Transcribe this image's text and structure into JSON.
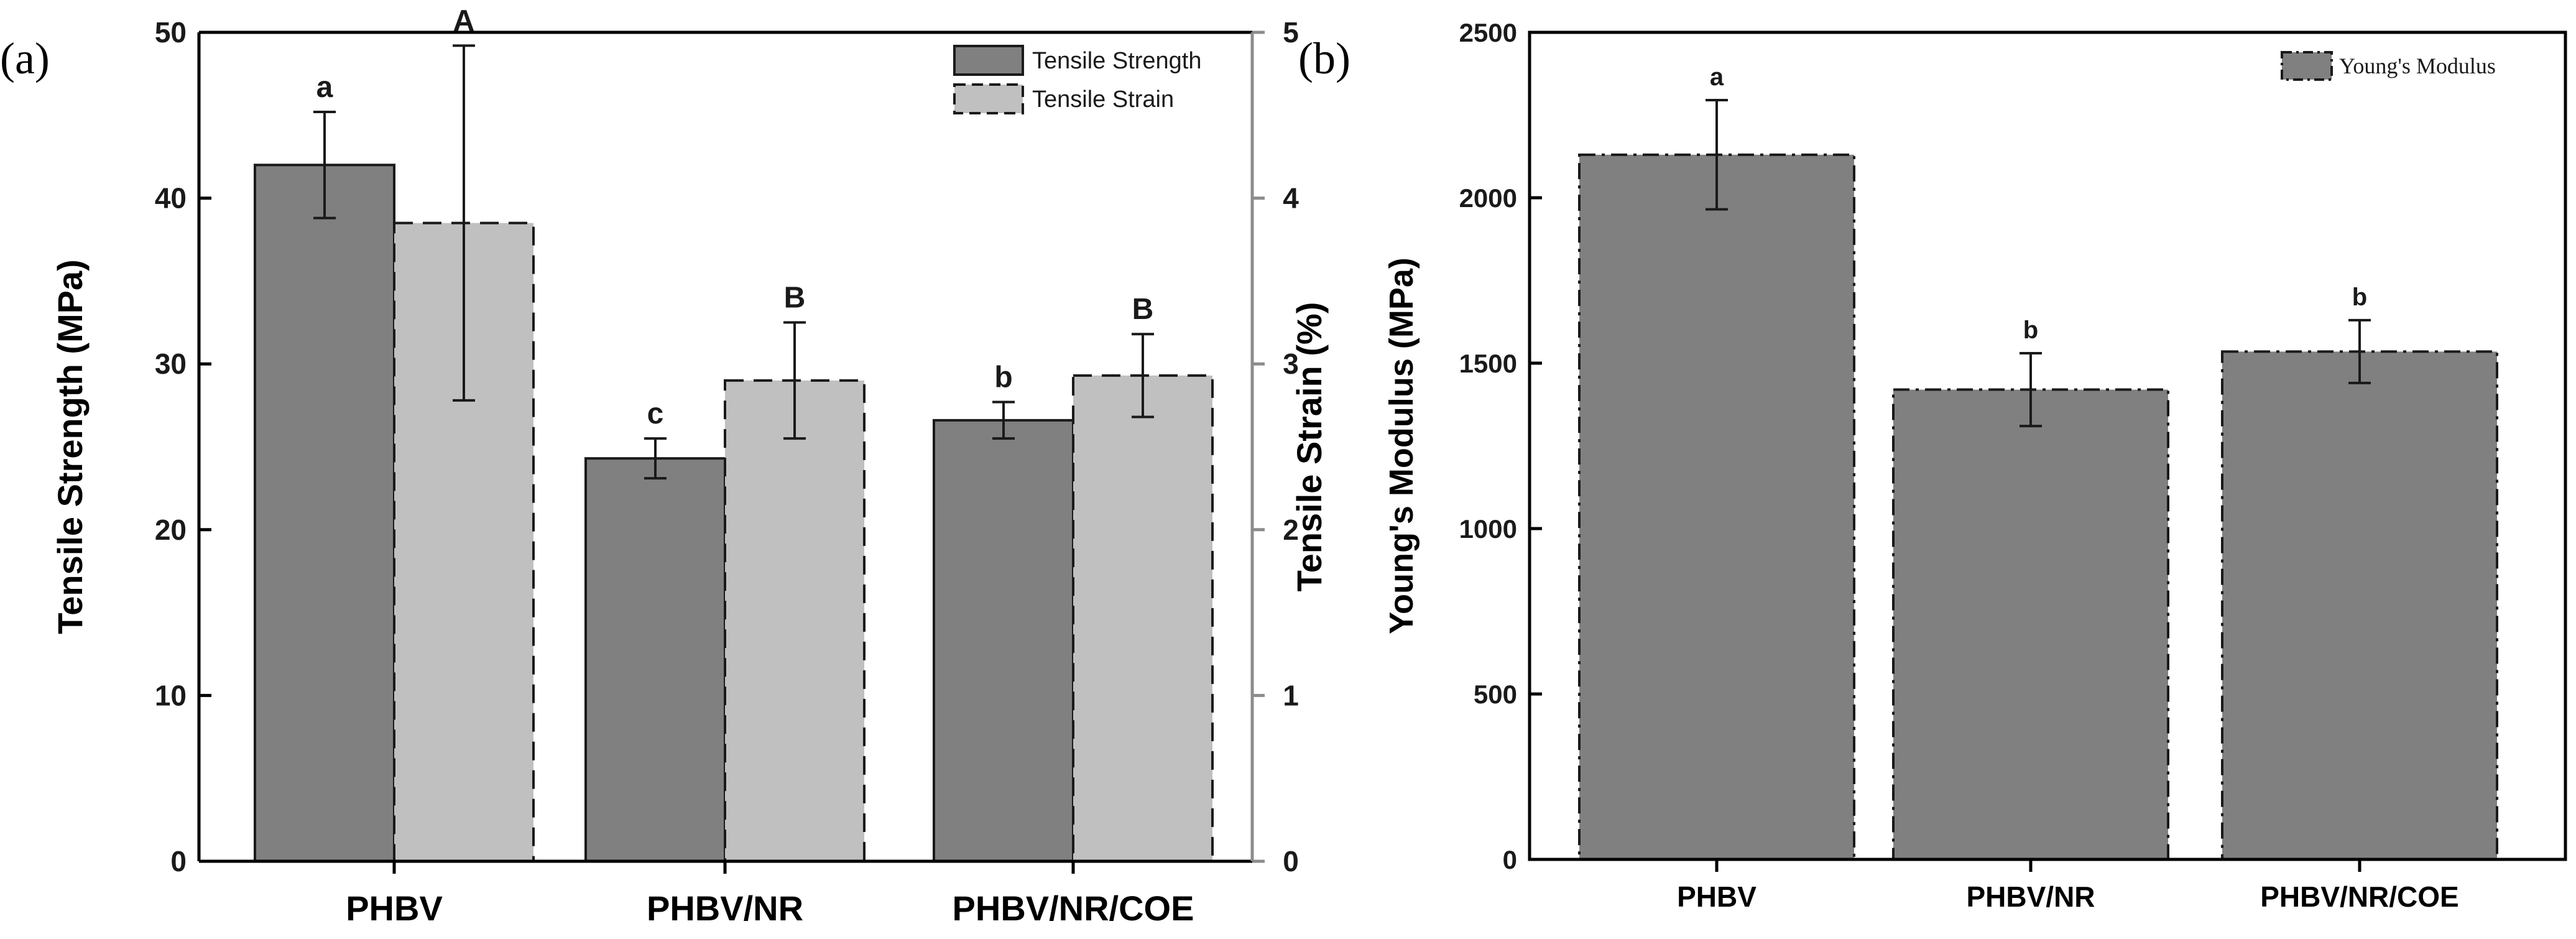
{
  "panels": [
    {
      "label": "(a)",
      "chart_data": {
        "type": "bar",
        "categories": [
          "PHBV",
          "PHBV/NR",
          "PHBV/NR/COE"
        ],
        "ylabel": "Tensile Strength (MPa)",
        "y2label": "Tensile Strain (%)",
        "ylim": [
          0,
          50
        ],
        "y2lim": [
          0,
          5
        ],
        "yticks": [
          0,
          10,
          20,
          30,
          40,
          50
        ],
        "y2ticks": [
          0,
          1,
          2,
          3,
          4,
          5
        ],
        "legend_position": "top-right",
        "series": [
          {
            "name": "Tensile Strength",
            "axis": "left",
            "values": [
              42.0,
              24.3,
              26.6
            ],
            "errors": [
              3.2,
              1.2,
              1.1
            ],
            "letters": [
              "a",
              "c",
              "b"
            ],
            "color": "#808080",
            "edge_style": "solid"
          },
          {
            "name": "Tensile Strain",
            "axis": "right",
            "values": [
              3.85,
              2.9,
              2.93
            ],
            "errors": [
              1.07,
              0.35,
              0.25
            ],
            "letters": [
              "A",
              "B",
              "B"
            ],
            "color": "#c0c0c0",
            "edge_style": "dashed"
          }
        ]
      }
    },
    {
      "label": "(b)",
      "chart_data": {
        "type": "bar",
        "categories": [
          "PHBV",
          "PHBV/NR",
          "PHBV/NR/COE"
        ],
        "ylabel": "Young's Modulus (MPa)",
        "ylim": [
          0,
          2500
        ],
        "yticks": [
          0,
          500,
          1000,
          1500,
          2000,
          2500
        ],
        "legend_position": "top-right",
        "series": [
          {
            "name": "Young's Modulus",
            "values": [
              2130,
              1420,
              1535
            ],
            "errors": [
              165,
              110,
              95
            ],
            "letters": [
              "a",
              "b",
              "b"
            ],
            "color": "#808080",
            "edge_style": "dashdot"
          }
        ]
      }
    }
  ]
}
